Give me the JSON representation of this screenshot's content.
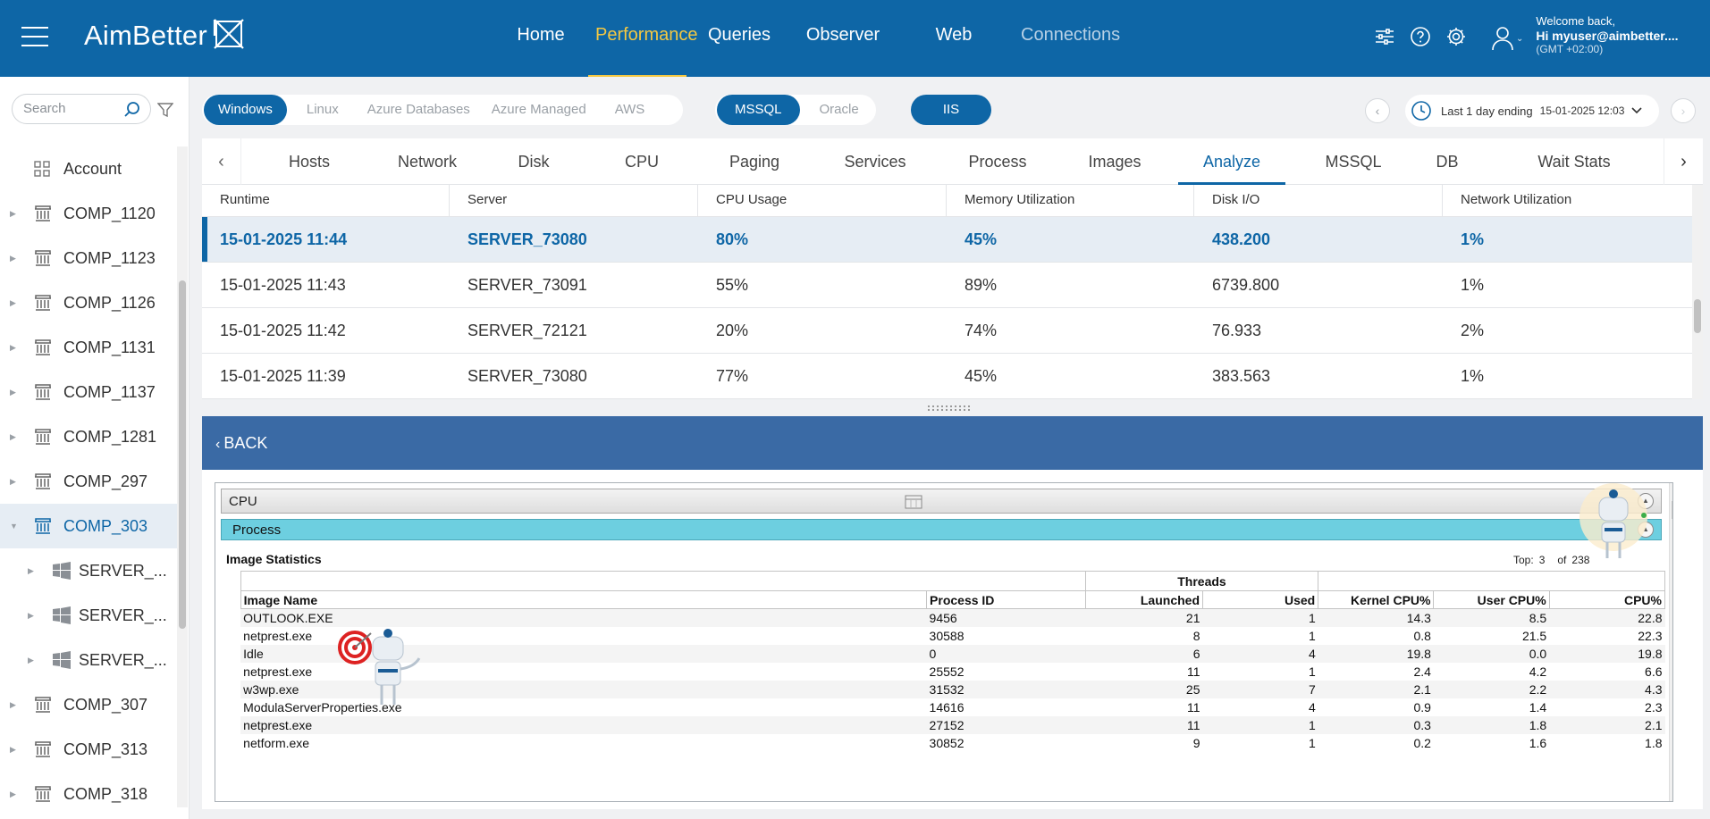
{
  "brand": {
    "name": "AimBetter"
  },
  "topnav": {
    "items": [
      {
        "label": "Home"
      },
      {
        "label": "Performance"
      },
      {
        "label": "Queries"
      },
      {
        "label": "Observer"
      },
      {
        "label": "Web"
      },
      {
        "label": "Connections"
      }
    ],
    "active": "Performance"
  },
  "user": {
    "welcome": "Welcome back,",
    "name": "Hi myuser@aimbetter....",
    "timezone": "(GMT +02:00)"
  },
  "sidebar": {
    "search_placeholder": "Search",
    "items": [
      {
        "label": "Account",
        "type": "account"
      },
      {
        "label": "COMP_1120"
      },
      {
        "label": "COMP_1123"
      },
      {
        "label": "COMP_1126"
      },
      {
        "label": "COMP_1131"
      },
      {
        "label": "COMP_1137"
      },
      {
        "label": "COMP_1281"
      },
      {
        "label": "COMP_297"
      },
      {
        "label": "COMP_303",
        "active": true
      },
      {
        "label": "SERVER_...",
        "child": true
      },
      {
        "label": "SERVER_...",
        "child": true
      },
      {
        "label": "SERVER_...",
        "child": true
      },
      {
        "label": "COMP_307"
      },
      {
        "label": "COMP_313"
      },
      {
        "label": "COMP_318"
      }
    ]
  },
  "filters": {
    "platforms": [
      "Windows",
      "Linux",
      "Azure Databases",
      "Azure Managed",
      "AWS"
    ],
    "platform_selected": "Windows",
    "db_types": [
      "MSSQL",
      "Oracle"
    ],
    "db_selected": "MSSQL",
    "iis_label": "IIS"
  },
  "timerange": {
    "label": "Last 1 day ending",
    "value": "15-01-2025 12:03"
  },
  "tabs": {
    "items": [
      "Hosts",
      "Network",
      "Disk",
      "CPU",
      "Paging",
      "Services",
      "Process",
      "Images",
      "Analyze",
      "MSSQL",
      "DB",
      "Wait Stats"
    ],
    "active": "Analyze"
  },
  "grid": {
    "columns": [
      "Runtime",
      "Server",
      "CPU Usage",
      "Memory Utilization",
      "Disk I/O",
      "Network Utilization"
    ],
    "rows": [
      [
        "15-01-2025 11:44",
        "SERVER_73080",
        "80%",
        "45%",
        "438.200",
        "1%"
      ],
      [
        "15-01-2025 11:43",
        "SERVER_73091",
        "55%",
        "89%",
        "6739.800",
        "1%"
      ],
      [
        "15-01-2025 11:42",
        "SERVER_72121",
        "20%",
        "74%",
        "76.933",
        "2%"
      ],
      [
        "15-01-2025 11:39",
        "SERVER_73080",
        "77%",
        "45%",
        "383.563",
        "1%"
      ]
    ],
    "selected_row": 0
  },
  "detail": {
    "back_label": "BACK",
    "section_title": "CPU",
    "subsection_title": "Process",
    "table_title": "Image Statistics",
    "top_label": "Top:",
    "top_value": "3",
    "of_label": "of",
    "of_value": "238",
    "group_header": "Threads",
    "columns": [
      "Image Name",
      "Process ID",
      "Launched",
      "Used",
      "Kernel CPU%",
      "User CPU%",
      "CPU%"
    ],
    "rows": [
      [
        "OUTLOOK.EXE",
        "9456",
        "21",
        "1",
        "14.3",
        "8.5",
        "22.8"
      ],
      [
        "netprest.exe",
        "30588",
        "8",
        "1",
        "0.8",
        "21.5",
        "22.3"
      ],
      [
        "Idle",
        "0",
        "6",
        "4",
        "19.8",
        "0.0",
        "19.8"
      ],
      [
        "netprest.exe",
        "25552",
        "11",
        "1",
        "2.4",
        "4.2",
        "6.6"
      ],
      [
        "w3wp.exe",
        "31532",
        "25",
        "7",
        "2.1",
        "2.2",
        "4.3"
      ],
      [
        "ModulaServerProperties.exe",
        "14616",
        "11",
        "4",
        "0.9",
        "1.4",
        "2.3"
      ],
      [
        "netprest.exe",
        "27152",
        "11",
        "1",
        "0.3",
        "1.8",
        "2.1"
      ],
      [
        "netform.exe",
        "30852",
        "9",
        "1",
        "0.2",
        "1.6",
        "1.8"
      ]
    ]
  },
  "colors": {
    "brand_blue": "#0e66a6",
    "active_nav": "#f4c842",
    "back_bar": "#3a6aa5",
    "process_bar": "#6dcfe0",
    "selected_row_bg": "#e6edf4"
  }
}
